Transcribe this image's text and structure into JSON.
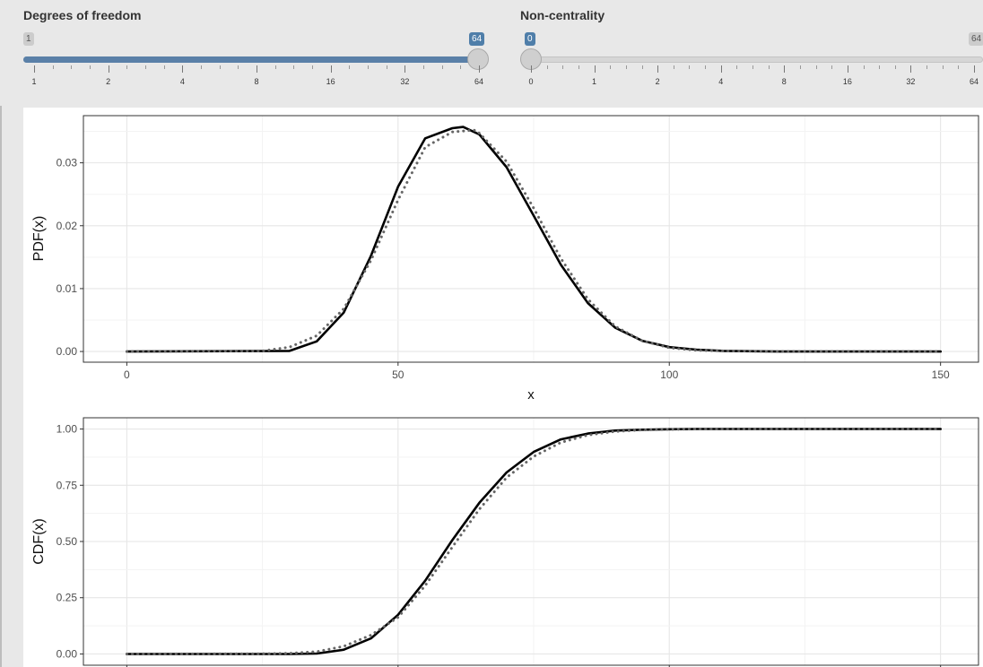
{
  "sliders": [
    {
      "label": "Degrees of freedom",
      "min_label": "1",
      "max_label": "64",
      "value_label": "64",
      "value": 64,
      "ticks": [
        "1",
        "2",
        "4",
        "8",
        "16",
        "32",
        "64"
      ]
    },
    {
      "label": "Non-centrality",
      "min_label": "0",
      "max_label": "64",
      "value_label": "0",
      "value": 0,
      "ticks": [
        "0",
        "1",
        "2",
        "4",
        "8",
        "16",
        "32",
        "64"
      ]
    }
  ],
  "chart_data": [
    {
      "type": "line",
      "ylabel": "PDF(x)",
      "xlabel": "x",
      "xlim": [
        -8,
        157
      ],
      "ylim": [
        -0.0017,
        0.0375
      ],
      "xticks": [
        "0",
        "50",
        "100",
        "150"
      ],
      "yticks": [
        "0.00",
        "0.01",
        "0.02",
        "0.03"
      ],
      "grid": true,
      "series": [
        {
          "style": "solid",
          "color": "#000000",
          "x": [
            0,
            30,
            35,
            40,
            45,
            50,
            55,
            60,
            62,
            65,
            70,
            75,
            80,
            85,
            90,
            95,
            100,
            105,
            110,
            120,
            150
          ],
          "y": [
            0,
            0.0001,
            0.0016,
            0.0062,
            0.0152,
            0.0262,
            0.0339,
            0.0355,
            0.0357,
            0.0345,
            0.0293,
            0.0216,
            0.0138,
            0.0077,
            0.0038,
            0.0017,
            0.0007,
            0.0003,
            0.0001,
            0,
            0
          ]
        },
        {
          "style": "dotted",
          "color": "#666666",
          "x": [
            0,
            25,
            30,
            35,
            40,
            45,
            50,
            55,
            60,
            64,
            65,
            70,
            75,
            80,
            85,
            90,
            95,
            100,
            105,
            110,
            120,
            150
          ],
          "y": [
            0,
            0.0001,
            0.0007,
            0.0025,
            0.0068,
            0.0145,
            0.0241,
            0.0325,
            0.0349,
            0.0352,
            0.0347,
            0.0302,
            0.0228,
            0.0148,
            0.0083,
            0.004,
            0.0017,
            0.0006,
            0.0002,
            0.0001,
            0,
            0
          ]
        }
      ]
    },
    {
      "type": "line",
      "ylabel": "CDF(x)",
      "xlim": [
        -8,
        157
      ],
      "ylim": [
        -0.05,
        1.05
      ],
      "yticks": [
        "0.00",
        "0.25",
        "0.50",
        "0.75",
        "1.00"
      ],
      "grid": true,
      "series": [
        {
          "style": "solid",
          "color": "#000000",
          "x": [
            0,
            30,
            35,
            40,
            45,
            50,
            55,
            60,
            65,
            70,
            75,
            80,
            85,
            90,
            95,
            100,
            105,
            110,
            120,
            150
          ],
          "y": [
            0,
            0,
            0.002,
            0.019,
            0.069,
            0.174,
            0.326,
            0.506,
            0.672,
            0.807,
            0.898,
            0.954,
            0.98,
            0.993,
            0.997,
            0.999,
            1.0,
            1.0,
            1.0,
            1.0
          ]
        },
        {
          "style": "dashed",
          "color": "#000000",
          "x": [
            0,
            30,
            35,
            40,
            45,
            50,
            55,
            60,
            65,
            70,
            75,
            80,
            85,
            90,
            95,
            100,
            105,
            110,
            120,
            150
          ],
          "y": [
            0,
            0,
            0.002,
            0.019,
            0.069,
            0.174,
            0.326,
            0.506,
            0.672,
            0.807,
            0.898,
            0.954,
            0.98,
            0.993,
            0.997,
            0.999,
            1.0,
            1.0,
            1.0,
            1.0
          ]
        },
        {
          "style": "dotted",
          "color": "#666666",
          "x": [
            0,
            25,
            30,
            35,
            40,
            45,
            50,
            55,
            60,
            65,
            70,
            75,
            80,
            85,
            90,
            95,
            100,
            105,
            110,
            120,
            150
          ],
          "y": [
            0,
            0.001,
            0.003,
            0.01,
            0.034,
            0.084,
            0.163,
            0.304,
            0.475,
            0.644,
            0.784,
            0.878,
            0.94,
            0.973,
            0.989,
            0.996,
            0.998,
            1.0,
            1.0,
            1.0,
            1.0
          ]
        }
      ]
    }
  ]
}
